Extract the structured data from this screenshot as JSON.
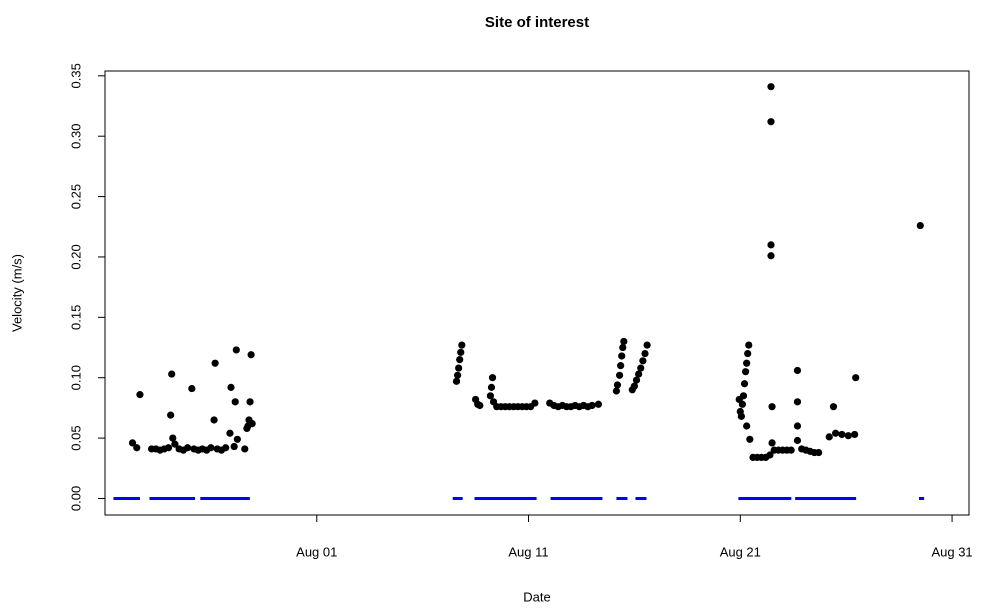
{
  "chart_data": {
    "type": "scatter",
    "title": "Site of interest",
    "xlabel": "Date",
    "ylabel": "Velocity (m/s)",
    "xlim": [
      -10,
      30.8
    ],
    "ylim": [
      -0.0137,
      0.354
    ],
    "xticks": [
      {
        "value": 0,
        "label": "Aug 01"
      },
      {
        "value": 10,
        "label": "Aug 11"
      },
      {
        "value": 20,
        "label": "Aug 21"
      },
      {
        "value": 30,
        "label": "Aug 31"
      }
    ],
    "yticks": [
      {
        "value": 0,
        "label": "0.00"
      },
      {
        "value": 0.05,
        "label": "0.05"
      },
      {
        "value": 0.1,
        "label": "0.10"
      },
      {
        "value": 0.15,
        "label": "0.15"
      },
      {
        "value": 0.2,
        "label": "0.20"
      },
      {
        "value": 0.25,
        "label": "0.25"
      },
      {
        "value": 0.3,
        "label": "0.30"
      },
      {
        "value": 0.35,
        "label": "0.35"
      }
    ],
    "series": [
      {
        "type": "scatter",
        "color": "#000000",
        "x": [
          -8.7,
          -8.5,
          -8.35,
          -7.8,
          -7.6,
          -7.4,
          -7.2,
          -7.0,
          -6.9,
          -6.85,
          -6.8,
          -6.7,
          -6.5,
          -6.3,
          -6.1,
          -5.9,
          -5.8,
          -5.6,
          -5.4,
          -5.2,
          -5.0,
          -4.85,
          -4.8,
          -4.7,
          -4.5,
          -4.3,
          -4.1,
          -4.05,
          -3.9,
          -3.85,
          -3.8,
          -3.75,
          -3.4,
          -3.3,
          -3.25,
          -3.2,
          -3.15,
          -3.1,
          -3.05,
          6.6,
          6.65,
          6.7,
          6.75,
          6.8,
          6.85,
          7.5,
          7.6,
          7.7,
          8.2,
          8.25,
          8.3,
          8.35,
          8.5,
          8.7,
          8.9,
          9.1,
          9.3,
          9.5,
          9.7,
          9.9,
          10.1,
          10.3,
          11.0,
          11.2,
          11.4,
          11.6,
          11.8,
          12.0,
          12.2,
          12.4,
          12.6,
          12.8,
          13.0,
          13.3,
          14.15,
          14.2,
          14.3,
          14.35,
          14.4,
          14.45,
          14.5,
          14.9,
          15.0,
          15.1,
          15.2,
          15.3,
          15.4,
          15.5,
          15.6,
          19.95,
          20.0,
          20.05,
          20.1,
          20.15,
          20.2,
          20.25,
          20.3,
          20.35,
          20.4,
          20.3,
          20.45,
          20.6,
          20.8,
          21.0,
          21.2,
          21.4,
          21.45,
          21.45,
          21.45,
          21.45,
          21.5,
          21.5,
          21.6,
          21.8,
          22.0,
          22.2,
          22.4,
          22.7,
          22.7,
          22.7,
          22.7,
          22.9,
          23.1,
          23.3,
          23.5,
          23.7,
          24.2,
          24.4,
          24.5,
          24.8,
          25.1,
          25.4,
          25.45,
          28.5
        ],
        "values": [
          0.046,
          0.042,
          0.086,
          0.041,
          0.041,
          0.04,
          0.041,
          0.042,
          0.069,
          0.103,
          0.05,
          0.045,
          0.041,
          0.04,
          0.042,
          0.091,
          0.041,
          0.04,
          0.041,
          0.04,
          0.042,
          0.065,
          0.112,
          0.041,
          0.04,
          0.042,
          0.054,
          0.092,
          0.043,
          0.08,
          0.123,
          0.049,
          0.041,
          0.058,
          0.06,
          0.065,
          0.08,
          0.119,
          0.062,
          0.097,
          0.102,
          0.108,
          0.115,
          0.121,
          0.127,
          0.082,
          0.078,
          0.077,
          0.085,
          0.092,
          0.1,
          0.08,
          0.076,
          0.076,
          0.076,
          0.076,
          0.076,
          0.076,
          0.076,
          0.076,
          0.076,
          0.079,
          0.079,
          0.077,
          0.076,
          0.077,
          0.076,
          0.076,
          0.077,
          0.076,
          0.077,
          0.076,
          0.077,
          0.078,
          0.089,
          0.094,
          0.102,
          0.11,
          0.118,
          0.125,
          0.13,
          0.09,
          0.093,
          0.098,
          0.103,
          0.108,
          0.114,
          0.12,
          0.127,
          0.082,
          0.072,
          0.068,
          0.078,
          0.085,
          0.095,
          0.105,
          0.112,
          0.12,
          0.127,
          0.06,
          0.049,
          0.034,
          0.034,
          0.034,
          0.034,
          0.036,
          0.341,
          0.312,
          0.21,
          0.201,
          0.076,
          0.046,
          0.04,
          0.04,
          0.04,
          0.04,
          0.04,
          0.106,
          0.08,
          0.06,
          0.048,
          0.041,
          0.04,
          0.039,
          0.038,
          0.038,
          0.051,
          0.076,
          0.054,
          0.053,
          0.052,
          0.053,
          0.1,
          0.226
        ]
      },
      {
        "type": "line",
        "color": "#0000ff",
        "x": [
          -9.6,
          -8.35,
          -8.1,
          -7.9,
          -5.75,
          -5.6,
          -5.5,
          -3.16,
          -3.0,
          6.42,
          6.89,
          7.2,
          7.45,
          10.38,
          10.7,
          11.04,
          13.49,
          13.8,
          14.15,
          14.67,
          14.85,
          15.05,
          15.57,
          17.0,
          19.91,
          22.41,
          22.5,
          22.59,
          25.47,
          27.0,
          28.44,
          28.68
        ],
        "values": [
          0,
          0,
          null,
          0,
          0,
          null,
          0,
          0,
          null,
          0,
          0,
          null,
          0,
          0,
          null,
          0,
          0,
          null,
          0,
          0,
          null,
          0,
          0,
          null,
          0,
          0,
          null,
          0,
          0,
          null,
          0,
          0
        ]
      }
    ]
  }
}
